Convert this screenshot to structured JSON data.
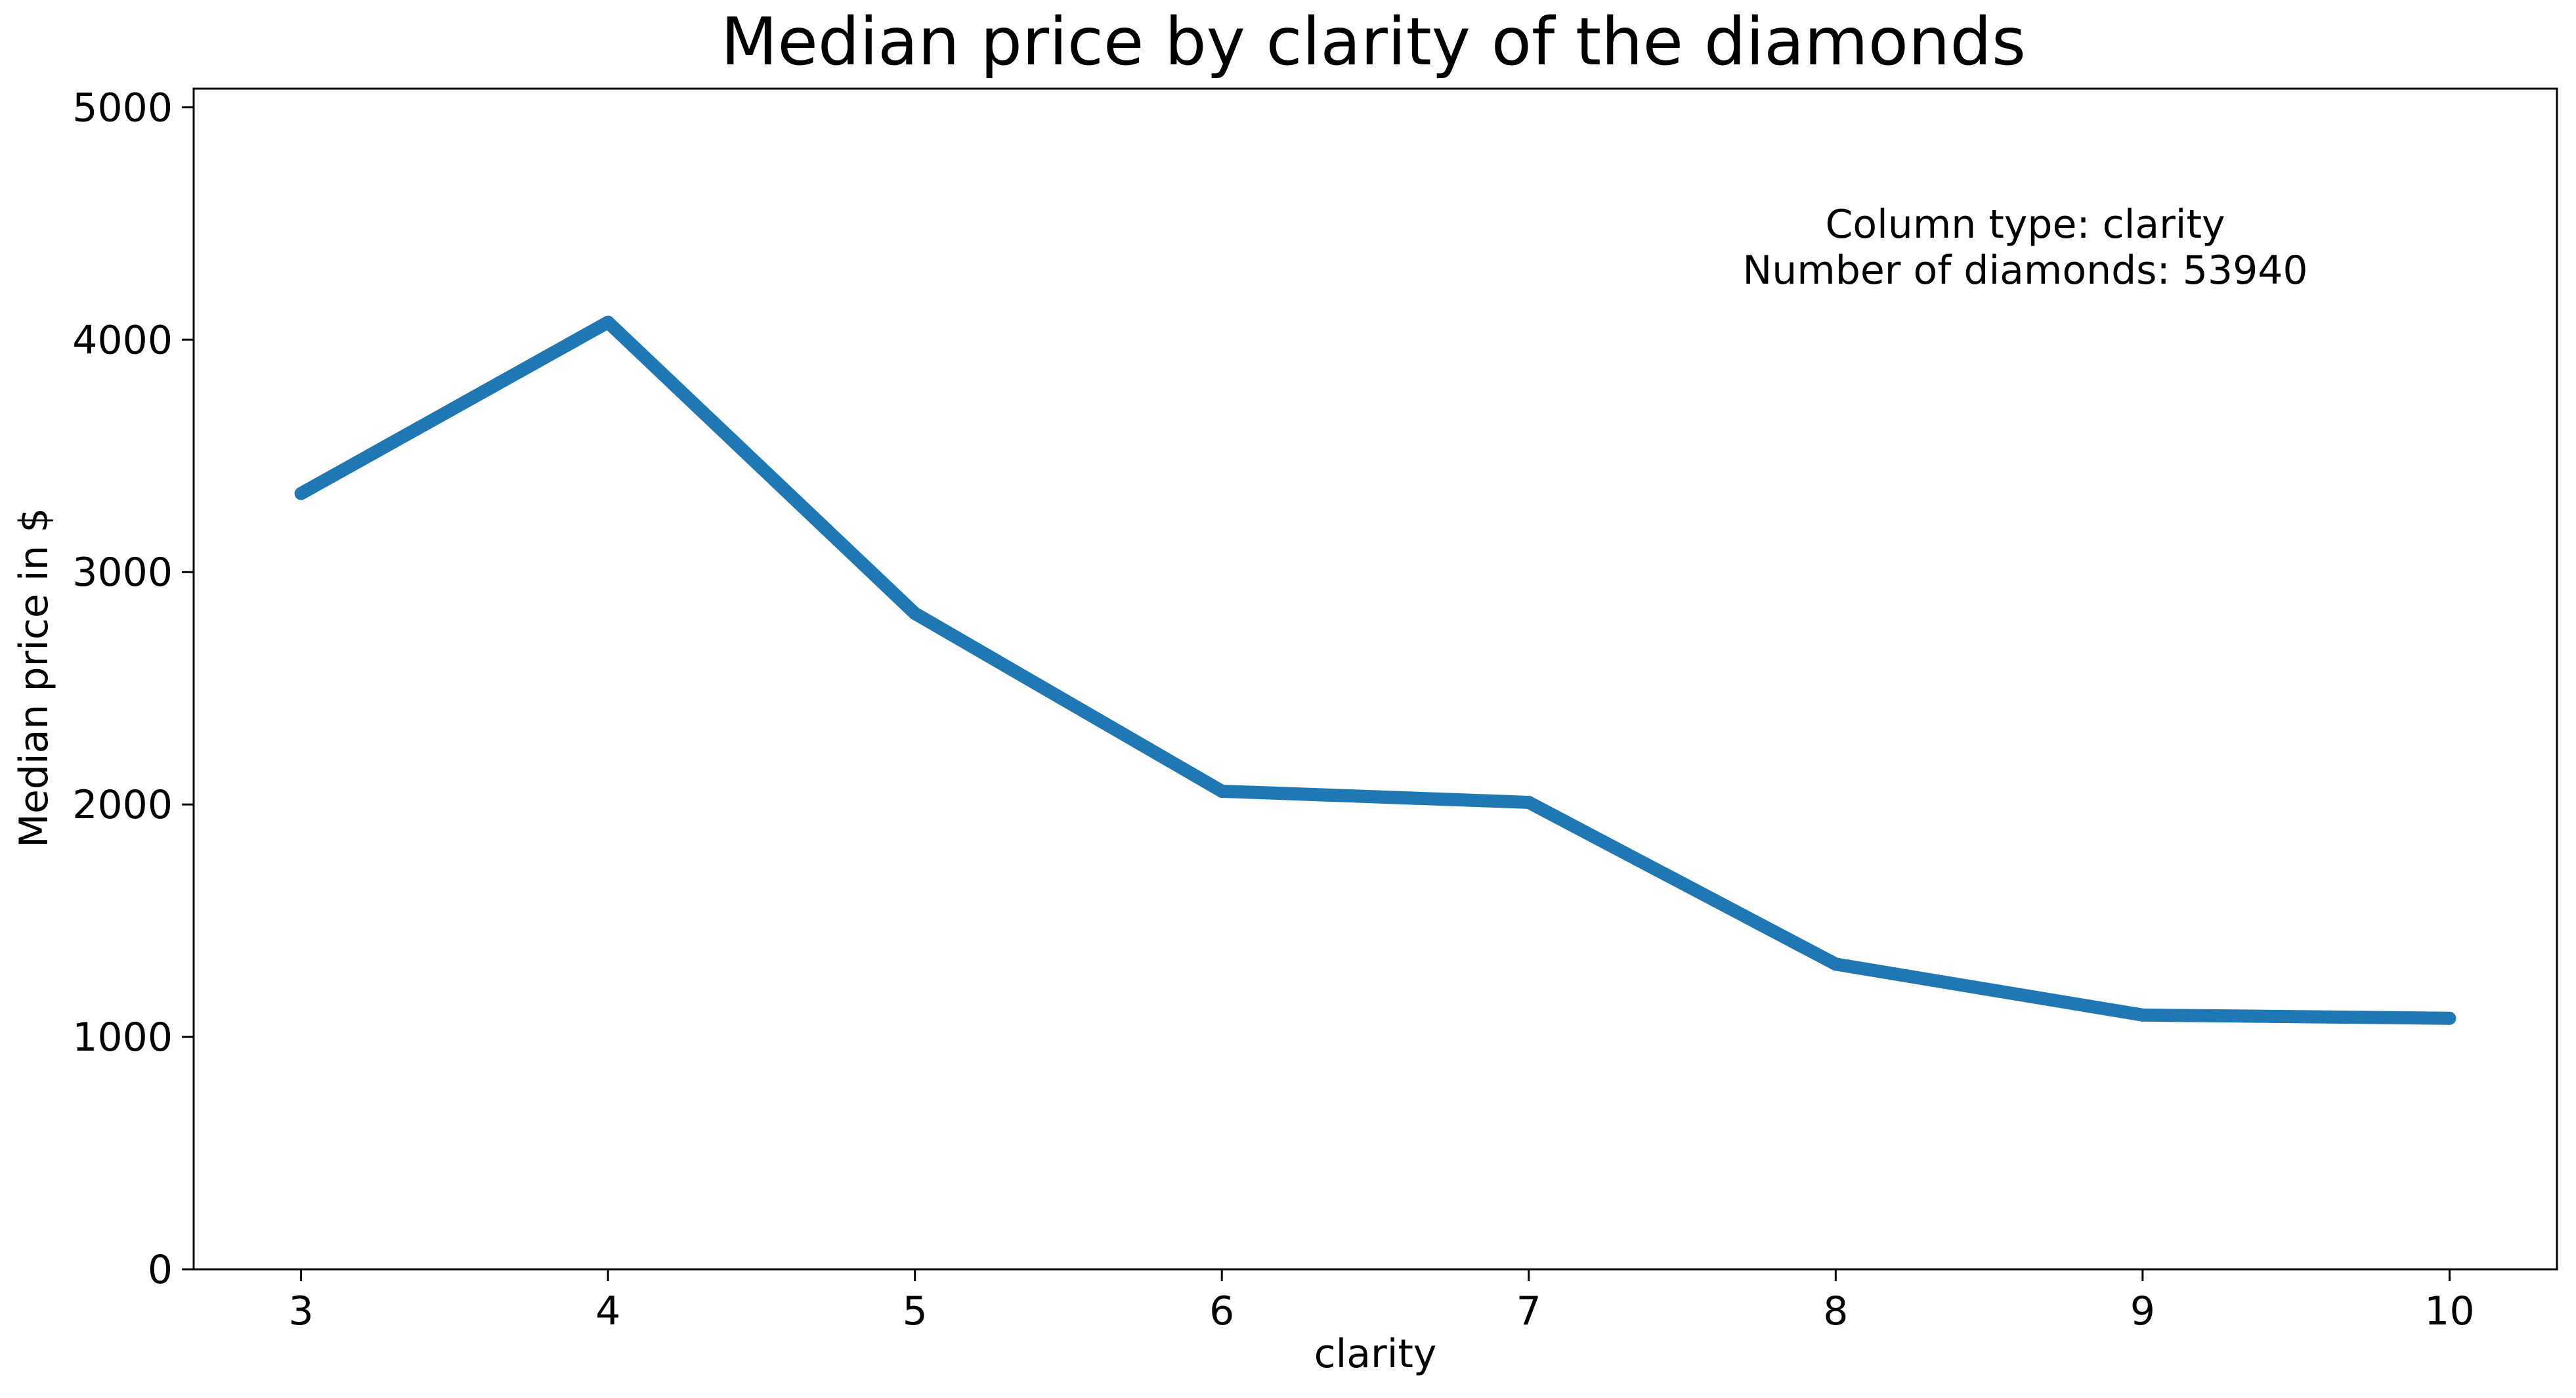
{
  "chart_data": {
    "type": "line",
    "title": "Median price by clarity of the diamonds",
    "xlabel": "clarity",
    "ylabel": "Median price in $",
    "x": [
      3,
      4,
      5,
      6,
      7,
      8,
      9,
      10
    ],
    "series": [
      {
        "values": [
          3338,
          4075,
          2822,
          2057,
          2009,
          1313,
          1094,
          1080
        ],
        "color": "#1f77b4"
      }
    ],
    "xlim": [
      2.65,
      10.35
    ],
    "ylim": [
      0,
      5080
    ],
    "xticks": [
      3,
      4,
      5,
      6,
      7,
      8,
      9,
      10
    ],
    "yticks": [
      0,
      1000,
      2000,
      3000,
      4000,
      5000
    ],
    "grid": false,
    "legend": "none",
    "annotation": {
      "lines": [
        "Column type: clarity",
        "Number of diamonds: 53940"
      ]
    }
  }
}
